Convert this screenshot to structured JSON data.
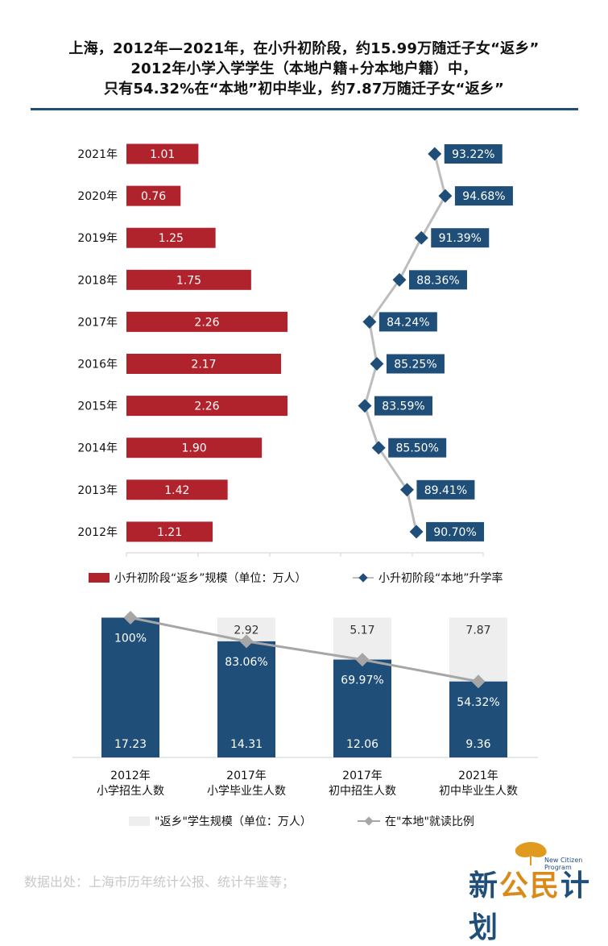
{
  "title": {
    "line1": "上海，2012年—2021年，在小升初阶段，约15.99万随迁子女“返乡”",
    "line2": "2012年小学入学学生（本地户籍+分本地户籍）中，",
    "line3": "只有54.32%在“本地”初中毕业，约7.87万随迁子女“返乡”"
  },
  "source": "数据出处：上海市历年统计公报、统计年鉴等；",
  "logo": {
    "text_a": "新",
    "text_b": "公民",
    "text_c": "计划",
    "sub_line1": "New Citizen",
    "sub_line2": "Program"
  },
  "colors": {
    "red": "#b0232c",
    "blue": "#1f4e79",
    "gray_line": "#bdbdbd",
    "light_gray": "#eeeeee"
  },
  "chart_data": [
    {
      "type": "bar",
      "orientation": "horizontal",
      "categories": [
        "2021年",
        "2020年",
        "2019年",
        "2018年",
        "2017年",
        "2016年",
        "2015年",
        "2014年",
        "2013年",
        "2012年"
      ],
      "series": [
        {
          "name": "小升初阶段“返乡”规模（单位：万人）",
          "values": [
            1.01,
            0.76,
            1.25,
            1.75,
            2.26,
            2.17,
            2.26,
            1.9,
            1.42,
            1.21
          ],
          "labels": [
            "1.01",
            "0.76",
            "1.25",
            "1.75",
            "2.26",
            "2.17",
            "2.26",
            "1.90",
            "1.42",
            "1.21"
          ]
        },
        {
          "name": "小升初阶段“本地”升学率",
          "type": "line",
          "values": [
            93.22,
            94.68,
            91.39,
            88.36,
            84.24,
            85.25,
            83.59,
            85.5,
            89.41,
            90.7
          ],
          "labels": [
            "93.22%",
            "94.68%",
            "91.39%",
            "88.36%",
            "84.24%",
            "85.25%",
            "83.59%",
            "85.50%",
            "89.41%",
            "90.70%"
          ]
        }
      ],
      "legend": "bottom"
    },
    {
      "type": "bar",
      "stacked": true,
      "categories": [
        {
          "line1": "2012年",
          "line2": "小学招生人数"
        },
        {
          "line1": "2017年",
          "line2": "小学毕业生人数"
        },
        {
          "line1": "2017年",
          "line2": "初中招生人数"
        },
        {
          "line1": "2021年",
          "line2": "初中毕业生人数"
        }
      ],
      "series": [
        {
          "values": [
            17.23,
            14.31,
            12.06,
            9.36
          ],
          "labels": [
            "17.23",
            "14.31",
            "12.06",
            "9.36"
          ]
        },
        {
          "name": "\"返乡\"学生规模（单位：万人）",
          "values": [
            0,
            2.92,
            5.17,
            7.87
          ],
          "labels": [
            "",
            "2.92",
            "5.17",
            "7.87"
          ]
        },
        {
          "name": "在\"本地\"就读比例",
          "type": "line",
          "values": [
            100,
            83.06,
            69.97,
            54.32
          ],
          "labels": [
            "100%",
            "83.06%",
            "69.97%",
            "54.32%"
          ]
        }
      ],
      "legend": "bottom"
    }
  ]
}
